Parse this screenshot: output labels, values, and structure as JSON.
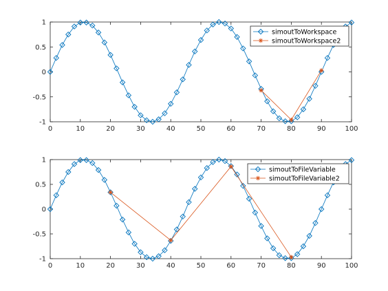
{
  "chart_data": [
    {
      "type": "line",
      "xlim": [
        0,
        100
      ],
      "ylim": [
        -1,
        1
      ],
      "xticks": [
        0,
        10,
        20,
        30,
        40,
        50,
        60,
        70,
        80,
        90,
        100
      ],
      "yticks": [
        1,
        0.5,
        0,
        -0.5,
        -1
      ],
      "xtick_labels": [
        "0",
        "10",
        "20",
        "30",
        "40",
        "50",
        "60",
        "70",
        "80",
        "90",
        "100"
      ],
      "ytick_labels": [
        "1",
        "0.5",
        "0",
        "-0.5",
        "-1"
      ],
      "grid": false,
      "legend_position": "top-right",
      "series": [
        {
          "name": "simoutToWorkspace",
          "color": "#0072BD",
          "marker": "diamond",
          "x": [
            0,
            2,
            4,
            6,
            8,
            10,
            12,
            14,
            16,
            18,
            20,
            22,
            24,
            26,
            28,
            30,
            32,
            34,
            36,
            38,
            40,
            42,
            44,
            46,
            48,
            50,
            52,
            54,
            56,
            58,
            60,
            62,
            64,
            66,
            68,
            70,
            72,
            74,
            76,
            78,
            80,
            82,
            84,
            86,
            88,
            90,
            92,
            94,
            96,
            98,
            100
          ],
          "values": [
            0,
            0.28,
            0.54,
            0.75,
            0.91,
            0.99,
            0.99,
            0.93,
            0.79,
            0.59,
            0.34,
            0.07,
            -0.21,
            -0.47,
            -0.7,
            -0.87,
            -0.97,
            -1.0,
            -0.95,
            -0.83,
            -0.64,
            -0.41,
            -0.15,
            0.14,
            0.41,
            0.64,
            0.83,
            0.95,
            1.0,
            0.97,
            0.87,
            0.7,
            0.47,
            0.21,
            -0.07,
            -0.34,
            -0.59,
            -0.79,
            -0.93,
            -0.99,
            -0.99,
            -0.91,
            -0.75,
            -0.54,
            -0.28,
            0.0,
            0.28,
            0.54,
            0.75,
            0.91,
            0.99
          ]
        },
        {
          "name": "simoutToWorkspace2",
          "color": "#D95319",
          "marker": "asterisk",
          "x": [
            70,
            80,
            90
          ],
          "values": [
            -0.37,
            -0.96,
            0.03
          ]
        }
      ]
    },
    {
      "type": "line",
      "xlim": [
        0,
        100
      ],
      "ylim": [
        -1,
        1
      ],
      "xticks": [
        0,
        10,
        20,
        30,
        40,
        50,
        60,
        70,
        80,
        90,
        100
      ],
      "yticks": [
        1,
        0.5,
        0,
        -0.5,
        -1
      ],
      "xtick_labels": [
        "0",
        "10",
        "20",
        "30",
        "40",
        "50",
        "60",
        "70",
        "80",
        "90",
        "100"
      ],
      "ytick_labels": [
        "1",
        "0.5",
        "0",
        "-0.5",
        "-1"
      ],
      "grid": false,
      "legend_position": "top-right",
      "series": [
        {
          "name": "simoutToFileVariable",
          "color": "#0072BD",
          "marker": "diamond",
          "x": [
            0,
            2,
            4,
            6,
            8,
            10,
            12,
            14,
            16,
            18,
            20,
            22,
            24,
            26,
            28,
            30,
            32,
            34,
            36,
            38,
            40,
            42,
            44,
            46,
            48,
            50,
            52,
            54,
            56,
            58,
            60,
            62,
            64,
            66,
            68,
            70,
            72,
            74,
            76,
            78,
            80,
            82,
            84,
            86,
            88,
            90,
            92,
            94,
            96,
            98,
            100
          ],
          "values": [
            0,
            0.28,
            0.54,
            0.75,
            0.91,
            0.99,
            0.99,
            0.93,
            0.79,
            0.59,
            0.34,
            0.07,
            -0.21,
            -0.47,
            -0.7,
            -0.87,
            -0.97,
            -1.0,
            -0.95,
            -0.83,
            -0.64,
            -0.41,
            -0.15,
            0.14,
            0.41,
            0.64,
            0.83,
            0.95,
            1.0,
            0.97,
            0.87,
            0.7,
            0.47,
            0.21,
            -0.07,
            -0.34,
            -0.59,
            -0.79,
            -0.93,
            -0.99,
            -0.99,
            -0.91,
            -0.75,
            -0.54,
            -0.28,
            0.0,
            0.28,
            0.54,
            0.75,
            0.91,
            0.99
          ]
        },
        {
          "name": "simoutToFileVariable2",
          "color": "#D95319",
          "marker": "asterisk",
          "x": [
            20,
            40,
            60,
            80
          ],
          "values": [
            0.34,
            -0.63,
            0.86,
            -0.97
          ]
        }
      ]
    }
  ]
}
